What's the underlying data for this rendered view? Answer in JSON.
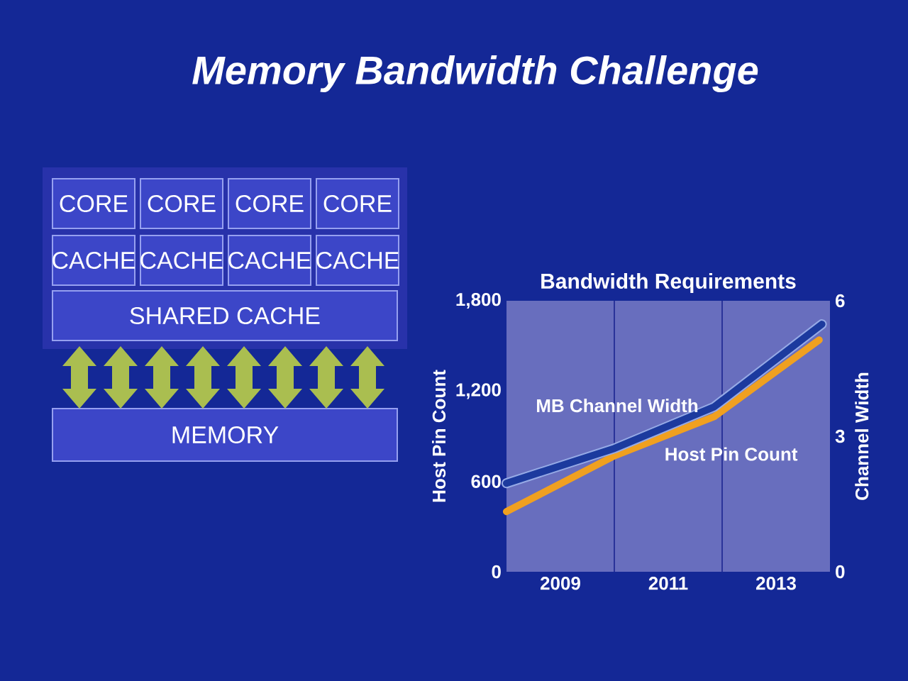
{
  "chart_data": [
    {
      "type": "other",
      "title": "Memory Bandwidth Challenge",
      "annotations": [
        "CORE",
        "CORE",
        "CORE",
        "CORE",
        "CACHE",
        "CACHE",
        "CACHE",
        "CACHE",
        "SHARED CACHE",
        "MEMORY"
      ]
    },
    {
      "type": "line",
      "title": "Bandwidth Requirements",
      "ylabel": "Host Pin Count",
      "y2label": "Channel Width",
      "xlim": [
        2008,
        2014
      ],
      "xticks": [
        2009,
        2011,
        2013
      ],
      "ylim": [
        0,
        1800
      ],
      "yticks": [
        0,
        600,
        {
          "value": 1200,
          "label": "1,200"
        },
        {
          "value": 1800,
          "label": "1,800"
        }
      ],
      "y2lim": [
        0,
        6
      ],
      "y2ticks": [
        0,
        3,
        6
      ],
      "ref_lines": [
        {
          "axis": "x",
          "value": 2010,
          "color": "#2a3399"
        },
        {
          "axis": "x",
          "value": 2012,
          "color": "#2a3399"
        }
      ],
      "series": [
        {
          "name": "Host Pin Count",
          "color": "#f0a020",
          "x": [
            2008.0,
            2010.0,
            2011.85,
            2013.8
          ],
          "values": [
            400,
            770,
            1030,
            1540
          ]
        },
        {
          "name": "MB Channel Width",
          "color": "#1c3a9e",
          "axis": "y2",
          "x": [
            2008.0,
            2010.0,
            2011.85,
            2013.85
          ],
          "values": [
            1.96,
            2.73,
            3.65,
            5.48
          ]
        }
      ]
    }
  ]
}
